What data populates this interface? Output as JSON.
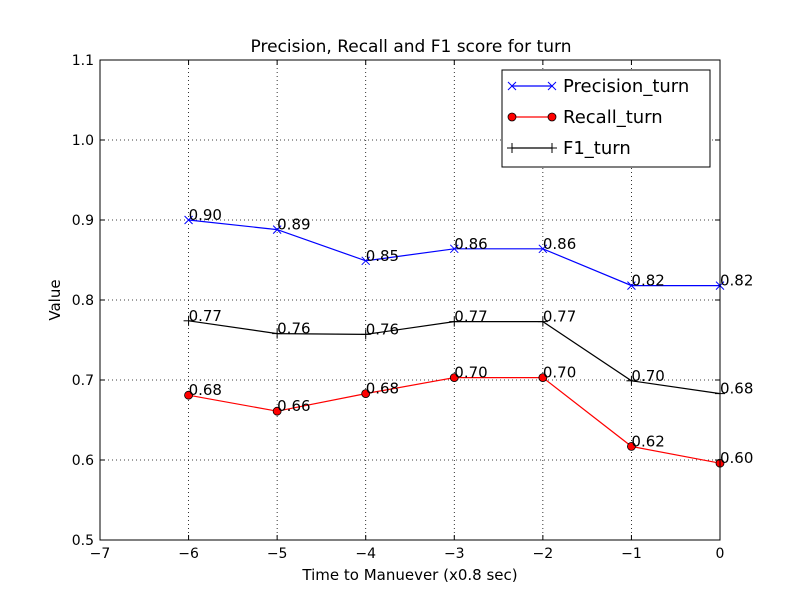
{
  "chart_data": {
    "type": "line",
    "title": "Precision, Recall and F1 score for turn",
    "xlabel": "Time to Manuever (x0.8 sec)",
    "ylabel": "Value",
    "xlim": [
      -7,
      0
    ],
    "ylim": [
      0.5,
      1.1
    ],
    "xticks": [
      -7,
      -6,
      -5,
      -4,
      -3,
      -2,
      -1,
      0
    ],
    "xtick_labels": [
      "−7",
      "−6",
      "−5",
      "−4",
      "−3",
      "−2",
      "−1",
      "0"
    ],
    "yticks": [
      0.5,
      0.6,
      0.7,
      0.8,
      0.9,
      1.0,
      1.1
    ],
    "ytick_labels": [
      "0.5",
      "0.6",
      "0.7",
      "0.8",
      "0.9",
      "1.0",
      "1.1"
    ],
    "grid": true,
    "legend_position": "top-right",
    "x": [
      -6,
      -5,
      -4,
      -3,
      -2,
      -1,
      0
    ],
    "series": [
      {
        "name": "Precision_turn",
        "color": "#0000ff",
        "marker": "x",
        "values": [
          0.9,
          0.888,
          0.849,
          0.864,
          0.864,
          0.818,
          0.818
        ],
        "labels": [
          "0.90",
          "0.89",
          "0.85",
          "0.86",
          "0.86",
          "0.82",
          "0.82"
        ]
      },
      {
        "name": "Recall_turn",
        "color": "#ff0000",
        "marker": "o",
        "values": [
          0.681,
          0.661,
          0.683,
          0.703,
          0.703,
          0.617,
          0.596
        ],
        "labels": [
          "0.68",
          "0.66",
          "0.68",
          "0.70",
          "0.70",
          "0.62",
          "0.60"
        ]
      },
      {
        "name": "F1_turn",
        "color": "#000000",
        "marker": "+",
        "values": [
          0.774,
          0.758,
          0.757,
          0.773,
          0.773,
          0.699,
          0.683
        ],
        "labels": [
          "0.77",
          "0.76",
          "0.76",
          "0.77",
          "0.77",
          "0.70",
          "0.68"
        ]
      }
    ]
  }
}
